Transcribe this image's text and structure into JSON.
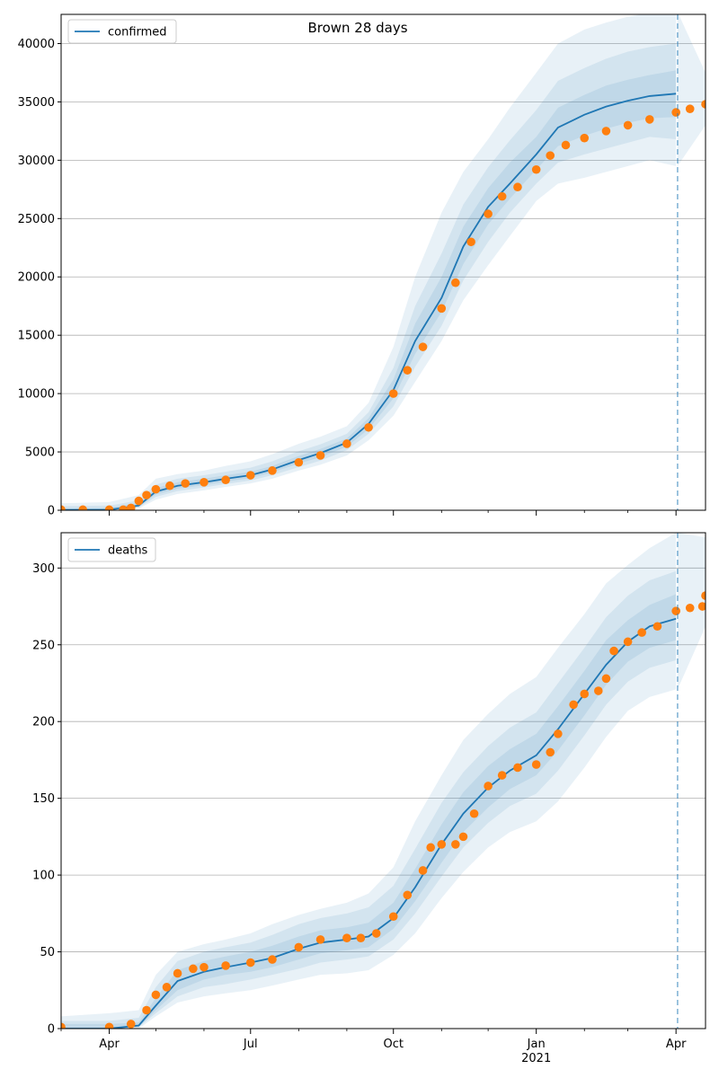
{
  "figure": {
    "title": "Brown 28 days"
  },
  "chart_data": [
    {
      "type": "line",
      "name": "confirmed",
      "legend": {
        "label": "confirmed",
        "placement": "upper-left"
      },
      "x_axis": {
        "type": "date",
        "range": [
          "2020-03-01",
          "2021-04-20"
        ],
        "ticks": [
          {
            "date": "2020-04-01",
            "label": "Apr"
          },
          {
            "date": "2020-07-01",
            "label": "Jul"
          },
          {
            "date": "2020-10-01",
            "label": "Oct"
          },
          {
            "date": "2021-01-01",
            "label": "Jan",
            "sublabel": "2021"
          },
          {
            "date": "2021-04-01",
            "label": "Apr"
          }
        ],
        "tick_labels_visible": false
      },
      "y_axis": {
        "range": [
          0,
          42500
        ],
        "ticks": [
          0,
          5000,
          10000,
          15000,
          20000,
          25000,
          30000,
          35000,
          40000
        ],
        "grid": true
      },
      "forecast_start": "2021-04-02",
      "model": {
        "dates": [
          "2020-03-01",
          "2020-04-01",
          "2020-04-20",
          "2020-05-01",
          "2020-05-15",
          "2020-06-01",
          "2020-06-15",
          "2020-07-01",
          "2020-07-15",
          "2020-08-01",
          "2020-08-15",
          "2020-09-01",
          "2020-09-15",
          "2020-10-01",
          "2020-10-15",
          "2020-11-01",
          "2020-11-15",
          "2020-12-01",
          "2020-12-15",
          "2021-01-01",
          "2021-01-15",
          "2021-02-01",
          "2021-02-15",
          "2021-03-01",
          "2021-03-15",
          "2021-04-01",
          "2021-04-20"
        ],
        "median": [
          30,
          50,
          400,
          1600,
          2100,
          2400,
          2700,
          3000,
          3500,
          4300,
          4900,
          5800,
          7400,
          10300,
          14500,
          18200,
          22600,
          26000,
          28000,
          30500,
          32800,
          33900,
          34600,
          35100,
          35500,
          35700,
          null
        ],
        "bands": [
          {
            "level": "outer",
            "lower": [
              0,
              0,
              150,
              900,
              1400,
              1700,
              2000,
              2300,
              2700,
              3400,
              3900,
              4700,
              6000,
              8100,
              11000,
              14500,
              18000,
              21000,
              23500,
              26500,
              28000,
              28500,
              29000,
              29500,
              30000,
              29500,
              null
            ],
            "upper": [
              600,
              700,
              1300,
              2700,
              3100,
              3400,
              3800,
              4200,
              4800,
              5700,
              6300,
              7200,
              9200,
              14000,
              20000,
              25500,
              29000,
              31800,
              34500,
              37500,
              40000,
              41200,
              41800,
              42300,
              42600,
              42700,
              null
            ]
          },
          {
            "level": "middle",
            "lower": [
              0,
              10,
              250,
              1150,
              1650,
              1950,
              2250,
              2550,
              3000,
              3700,
              4250,
              5150,
              6550,
              8900,
              12300,
              15800,
              19700,
              23000,
              25500,
              28000,
              29800,
              30500,
              31000,
              31500,
              32000,
              31800,
              null
            ],
            "upper": [
              350,
              400,
              850,
              2200,
              2700,
              3000,
              3300,
              3650,
              4200,
              5050,
              5650,
              6550,
              8400,
              12200,
              17500,
              22000,
              26200,
              29400,
              31700,
              34300,
              36800,
              37900,
              38700,
              39300,
              39700,
              40000,
              null
            ]
          },
          {
            "level": "inner",
            "lower": [
              0,
              20,
              320,
              1350,
              1850,
              2150,
              2450,
              2750,
              3250,
              4000,
              4550,
              5450,
              6950,
              9600,
              13400,
              17000,
              21100,
              24500,
              26700,
              29200,
              31200,
              32100,
              32700,
              33200,
              33600,
              33700,
              null
            ],
            "upper": [
              150,
              200,
              650,
              1900,
              2400,
              2700,
              3000,
              3300,
              3800,
              4650,
              5250,
              6150,
              7900,
              11200,
              16000,
              20000,
              24300,
              27600,
              29800,
              32000,
              34500,
              35600,
              36400,
              36900,
              37300,
              37700,
              null
            ]
          }
        ],
        "post_forecast": {
          "dates": [
            "2021-04-02",
            "2021-04-20"
          ],
          "lower": [
            29500,
            33000
          ],
          "upper": [
            42700,
            37500
          ]
        }
      },
      "observed": {
        "dates": [
          "2020-03-01",
          "2020-03-15",
          "2020-04-01",
          "2020-04-10",
          "2020-04-15",
          "2020-04-20",
          "2020-04-25",
          "2020-05-01",
          "2020-05-10",
          "2020-05-20",
          "2020-06-01",
          "2020-06-15",
          "2020-07-01",
          "2020-07-15",
          "2020-08-01",
          "2020-08-15",
          "2020-09-01",
          "2020-09-15",
          "2020-10-01",
          "2020-10-10",
          "2020-10-20",
          "2020-11-01",
          "2020-11-10",
          "2020-11-20",
          "2020-12-01",
          "2020-12-10",
          "2020-12-20",
          "2021-01-01",
          "2021-01-10",
          "2021-01-20",
          "2021-02-01",
          "2021-02-15",
          "2021-03-01",
          "2021-03-15",
          "2021-04-01",
          "2021-04-10",
          "2021-04-20"
        ],
        "values": [
          50,
          50,
          50,
          50,
          200,
          800,
          1300,
          1800,
          2100,
          2300,
          2400,
          2600,
          3000,
          3400,
          4100,
          4700,
          5700,
          7100,
          10000,
          12000,
          14000,
          17300,
          19500,
          23000,
          25400,
          26900,
          27700,
          29200,
          30400,
          31300,
          31900,
          32500,
          33000,
          33500,
          34100,
          34400,
          34800
        ]
      }
    },
    {
      "type": "line",
      "name": "deaths",
      "legend": {
        "label": "deaths",
        "placement": "upper-left"
      },
      "x_axis": {
        "type": "date",
        "range": [
          "2020-03-01",
          "2021-04-20"
        ],
        "ticks": [
          {
            "date": "2020-04-01",
            "label": "Apr"
          },
          {
            "date": "2020-07-01",
            "label": "Jul"
          },
          {
            "date": "2020-10-01",
            "label": "Oct"
          },
          {
            "date": "2021-01-01",
            "label": "Jan",
            "sublabel": "2021"
          },
          {
            "date": "2021-04-01",
            "label": "Apr"
          }
        ],
        "tick_labels_visible": true
      },
      "y_axis": {
        "range": [
          0,
          323
        ],
        "ticks": [
          0,
          50,
          100,
          150,
          200,
          250,
          300
        ],
        "grid": true
      },
      "forecast_start": "2021-04-02",
      "model": {
        "dates": [
          "2020-03-01",
          "2020-04-01",
          "2020-04-20",
          "2020-05-01",
          "2020-05-15",
          "2020-06-01",
          "2020-06-15",
          "2020-07-01",
          "2020-07-15",
          "2020-08-01",
          "2020-08-15",
          "2020-09-01",
          "2020-09-15",
          "2020-10-01",
          "2020-10-15",
          "2020-11-01",
          "2020-11-15",
          "2020-12-01",
          "2020-12-15",
          "2021-01-01",
          "2021-01-15",
          "2021-02-01",
          "2021-02-15",
          "2021-03-01",
          "2021-03-15",
          "2021-04-01",
          "2021-04-20"
        ],
        "median": [
          0,
          0,
          2,
          15,
          31,
          37,
          40,
          43,
          46,
          52,
          56,
          58,
          60,
          72,
          92,
          120,
          140,
          157,
          168,
          178,
          195,
          218,
          237,
          252,
          262,
          267,
          null
        ],
        "bands": [
          {
            "level": "outer",
            "lower": [
              0,
              0,
              0,
              8,
              17,
              21,
              23,
              25,
              28,
              32,
              35,
              36,
              38,
              48,
              62,
              85,
              102,
              118,
              128,
              135,
              148,
              170,
              190,
              207,
              216,
              221,
              null
            ],
            "upper": [
              8,
              10,
              12,
              35,
              50,
              55,
              58,
              62,
              68,
              74,
              78,
              82,
              88,
              105,
              135,
              165,
              188,
              205,
              218,
              229,
              248,
              270,
              290,
              302,
              313,
              323,
              null
            ]
          },
          {
            "level": "middle",
            "lower": [
              0,
              0,
              1,
              10,
              21,
              27,
              29,
              32,
              35,
              39,
              43,
              45,
              47,
              58,
              75,
              99,
              118,
              134,
              145,
              153,
              168,
              191,
              211,
              226,
              235,
              240,
              null
            ],
            "upper": [
              5,
              5,
              7,
              27,
              44,
              50,
              53,
              56,
              61,
              68,
              72,
              75,
              79,
              93,
              117,
              147,
              167,
              184,
              196,
              206,
              225,
              248,
              268,
              282,
              292,
              298,
              null
            ]
          },
          {
            "level": "inner",
            "lower": [
              0,
              0,
              1,
              12,
              25,
              32,
              35,
              37,
              40,
              45,
              49,
              51,
              53,
              65,
              83,
              108,
              128,
              144,
              156,
              165,
              181,
              204,
              224,
              239,
              248,
              253,
              null
            ],
            "upper": [
              3,
              3,
              4,
              20,
              38,
              44,
              47,
              50,
              54,
              60,
              64,
              66,
              69,
              82,
              104,
              133,
              154,
              171,
              182,
              192,
              210,
              233,
              253,
              266,
              276,
              283,
              null
            ]
          }
        ],
        "post_forecast": {
          "dates": [
            "2021-04-02",
            "2021-04-20"
          ],
          "lower": [
            221,
            262
          ],
          "upper": [
            323,
            320
          ]
        }
      },
      "observed": {
        "dates": [
          "2020-03-01",
          "2020-04-01",
          "2020-04-15",
          "2020-04-25",
          "2020-05-01",
          "2020-05-08",
          "2020-05-15",
          "2020-05-25",
          "2020-06-01",
          "2020-06-15",
          "2020-07-01",
          "2020-07-15",
          "2020-08-01",
          "2020-08-15",
          "2020-09-01",
          "2020-09-10",
          "2020-09-20",
          "2020-10-01",
          "2020-10-10",
          "2020-10-20",
          "2020-10-25",
          "2020-11-01",
          "2020-11-10",
          "2020-11-15",
          "2020-11-22",
          "2020-12-01",
          "2020-12-10",
          "2020-12-20",
          "2021-01-01",
          "2021-01-10",
          "2021-01-15",
          "2021-01-25",
          "2021-02-01",
          "2021-02-10",
          "2021-02-15",
          "2021-02-20",
          "2021-03-01",
          "2021-03-10",
          "2021-03-20",
          "2021-04-01",
          "2021-04-10",
          "2021-04-18",
          "2021-04-20"
        ],
        "values": [
          1,
          1,
          3,
          12,
          22,
          27,
          36,
          39,
          40,
          41,
          43,
          45,
          53,
          58,
          59,
          59,
          62,
          73,
          87,
          103,
          118,
          120,
          120,
          125,
          140,
          158,
          165,
          170,
          172,
          180,
          192,
          211,
          218,
          220,
          228,
          246,
          252,
          258,
          262,
          272,
          274,
          275,
          282
        ]
      }
    }
  ]
}
